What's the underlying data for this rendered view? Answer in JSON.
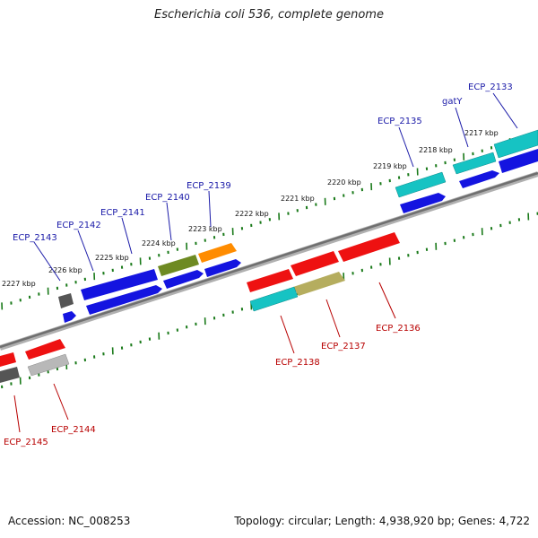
{
  "title": "Escherichia coli 536, complete genome",
  "footer": {
    "accession": "Accession: NC_008253",
    "topology": "Topology: circular; Length: 4,938,920 bp; Genes: 4,722"
  },
  "colors": {
    "backbone": "#8a8a8a",
    "ticks": "#1a7a1a",
    "forward_label": "#1a1aa8",
    "reverse_label": "#b80000",
    "blue": "#1414e0",
    "cyan": "#16c3c3",
    "green": "#6e8a22",
    "orange": "#ff8c00",
    "red": "#ee1111",
    "khaki": "#b5ad5e",
    "gray": "#555555",
    "lightgray": "#b8b8b8"
  },
  "scale_labels": [
    "2217 kbp",
    "2218 kbp",
    "2219 kbp",
    "2220 kbp",
    "2221 kbp",
    "2222 kbp",
    "2223 kbp",
    "2224 kbp",
    "2225 kbp",
    "2226 kbp",
    "2227 kbp"
  ],
  "forward_labels": [
    "ECP_2133",
    "gatY",
    "ECP_2135",
    "ECP_2139",
    "ECP_2140",
    "ECP_2141",
    "ECP_2142",
    "ECP_2143"
  ],
  "reverse_labels": [
    "ECP_2136",
    "ECP_2137",
    "ECP_2138",
    "ECP_2144",
    "ECP_2145"
  ]
}
